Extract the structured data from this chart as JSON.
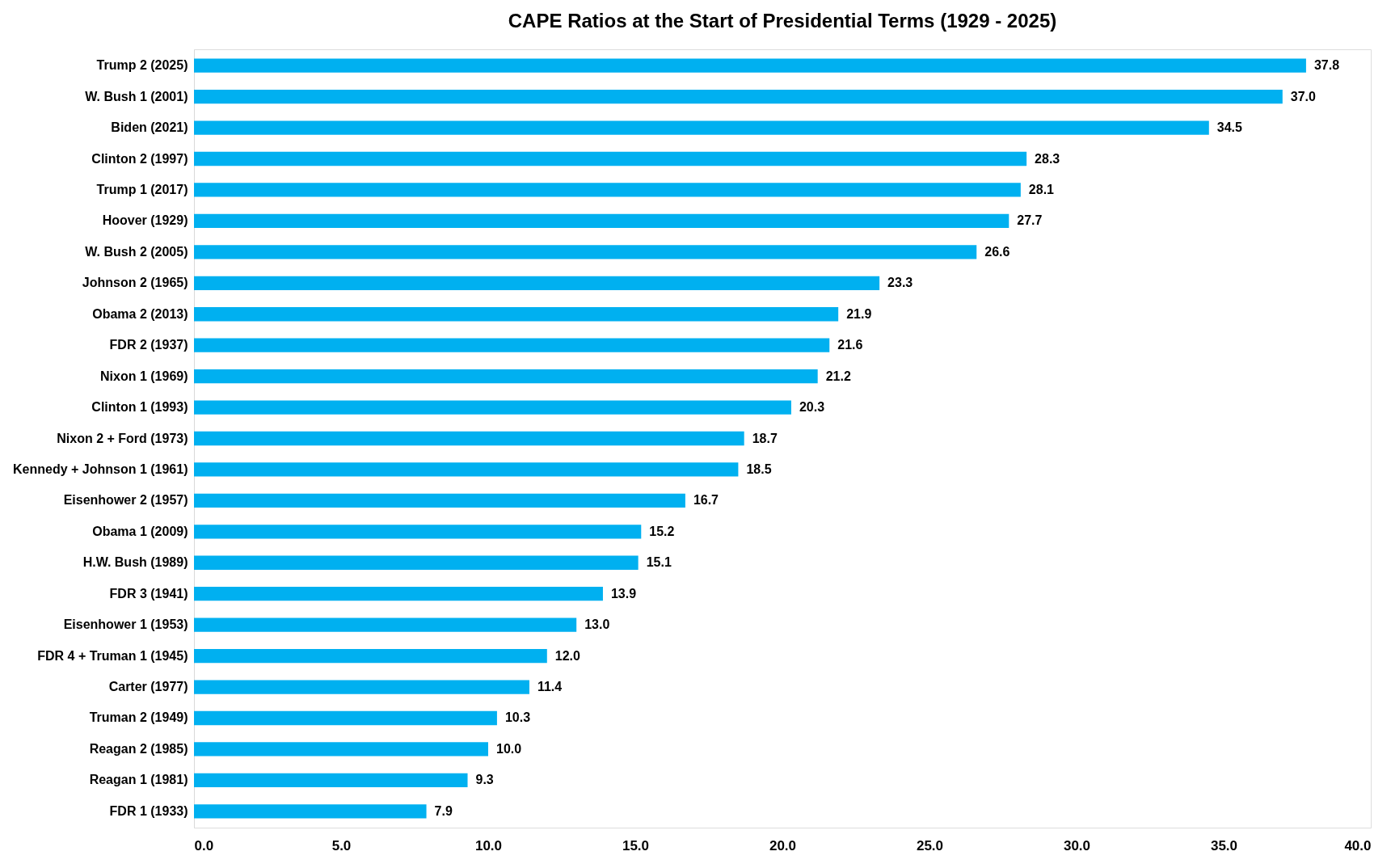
{
  "chart_data": {
    "type": "bar",
    "orientation": "horizontal",
    "title": "CAPE Ratios at the Start of Presidential Terms (1929 - 2025)",
    "categories": [
      "Trump 2 (2025)",
      "W. Bush 1 (2001)",
      "Biden (2021)",
      "Clinton 2 (1997)",
      "Trump 1 (2017)",
      "Hoover (1929)",
      "W. Bush 2 (2005)",
      "Johnson 2 (1965)",
      "Obama 2 (2013)",
      "FDR 2 (1937)",
      "Nixon 1 (1969)",
      "Clinton 1 (1993)",
      "Nixon 2 + Ford (1973)",
      "Kennedy + Johnson 1 (1961)",
      "Eisenhower 2 (1957)",
      "Obama 1 (2009)",
      "H.W. Bush (1989)",
      "FDR 3 (1941)",
      "Eisenhower 1 (1953)",
      "FDR 4 + Truman 1 (1945)",
      "Carter (1977)",
      "Truman 2 (1949)",
      "Reagan 2 (1985)",
      "Reagan 1 (1981)",
      "FDR 1 (1933)"
    ],
    "values": [
      37.8,
      37.0,
      34.5,
      28.3,
      28.1,
      27.7,
      26.6,
      23.3,
      21.9,
      21.6,
      21.2,
      20.3,
      18.7,
      18.5,
      16.7,
      15.2,
      15.1,
      13.9,
      13.0,
      12.0,
      11.4,
      10.3,
      10.0,
      9.3,
      7.9
    ],
    "value_labels": [
      "37.8",
      "37.0",
      "34.5",
      "28.3",
      "28.1",
      "27.7",
      "26.6",
      "23.3",
      "21.9",
      "21.6",
      "21.2",
      "20.3",
      "18.7",
      "18.5",
      "16.7",
      "15.2",
      "15.1",
      "13.9",
      "13.0",
      "12.0",
      "11.4",
      "10.3",
      "10.0",
      "9.3",
      "7.9"
    ],
    "color": "#00b0f0",
    "grid": false,
    "xlim": [
      0,
      40
    ],
    "xticks": [
      {
        "value": 0,
        "label": "0.0"
      },
      {
        "value": 5,
        "label": "5.0"
      },
      {
        "value": 10,
        "label": "10.0"
      },
      {
        "value": 15,
        "label": "15.0"
      },
      {
        "value": 20,
        "label": "20.0"
      },
      {
        "value": 25,
        "label": "25.0"
      },
      {
        "value": 30,
        "label": "30.0"
      },
      {
        "value": 35,
        "label": "35.0"
      },
      {
        "value": 40,
        "label": "40.0"
      }
    ]
  }
}
